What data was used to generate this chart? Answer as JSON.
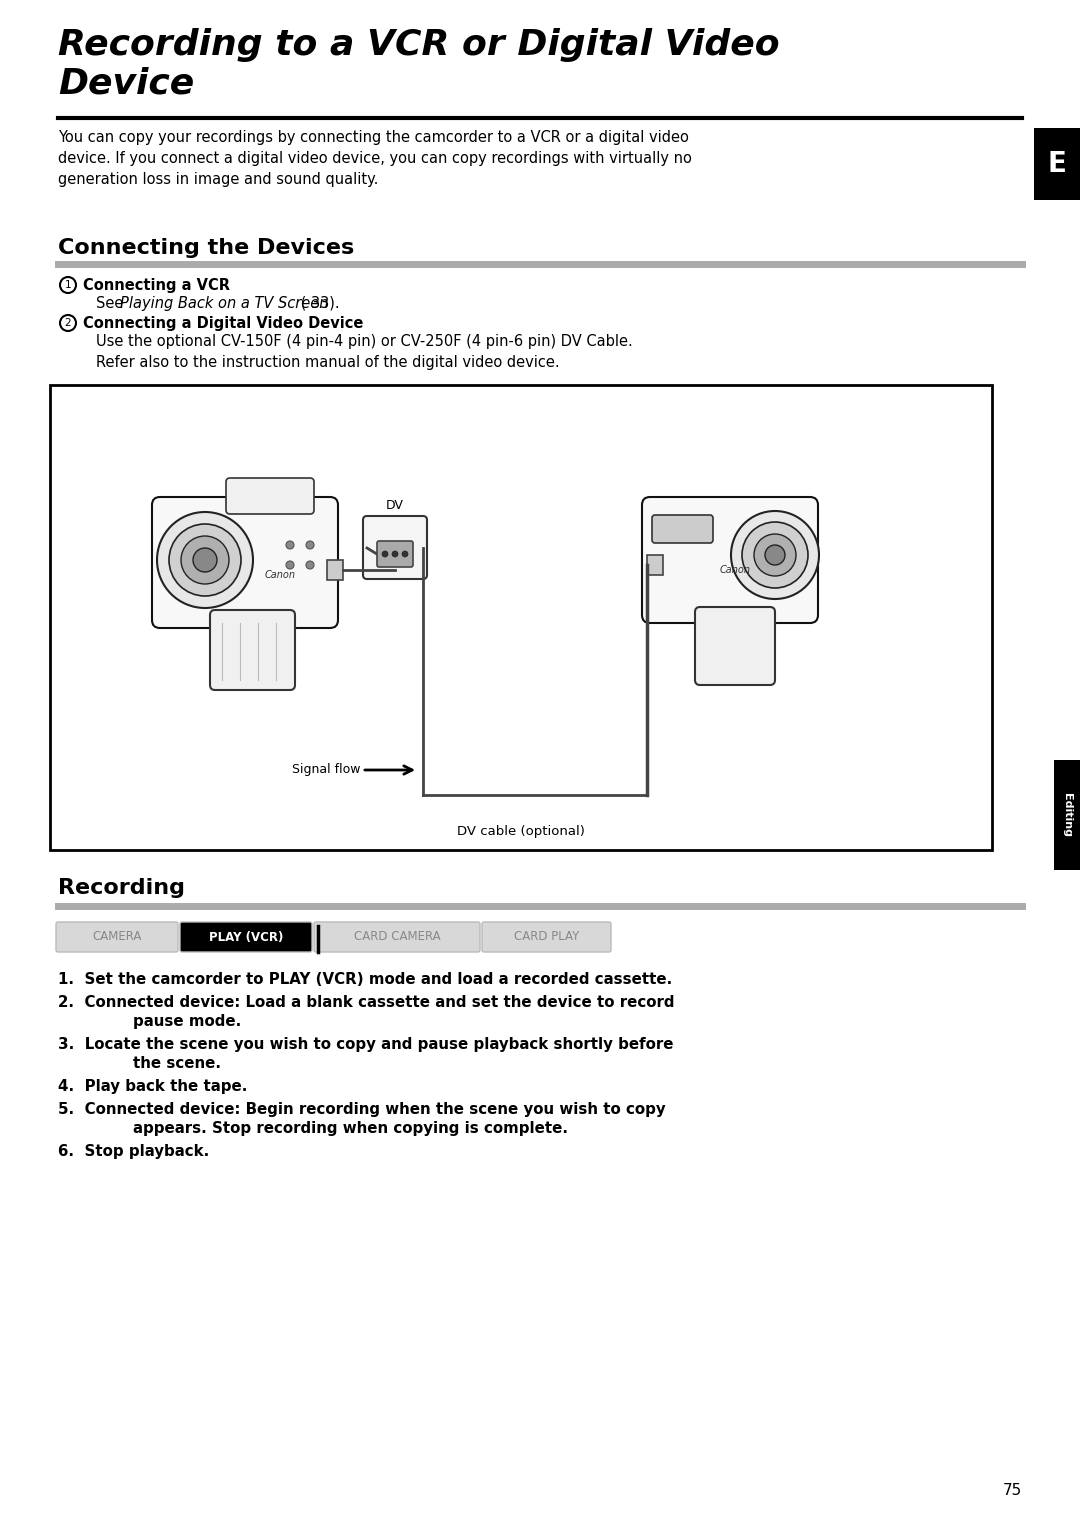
{
  "page_bg": "#ffffff",
  "title_line1": "Recording to a VCR or Digital Video",
  "title_line2": "Device",
  "title_fontsize": 26,
  "separator_color": "#000000",
  "section1_header": "Connecting the Devices",
  "section1_header_fontsize": 16,
  "body_fontsize": 10.5,
  "intro_text": "You can copy your recordings by connecting the camcorder to a VCR or a digital video\ndevice. If you connect a digital video device, you can copy recordings with virtually no\ngeneration loss in image and sound quality.",
  "bullet1_header": "Connecting a VCR",
  "bullet1_body_pre": "See ",
  "bullet1_body_italic": "Playing Back on a TV Screen",
  "bullet1_body_post": " ( 33).",
  "bullet2_header": "Connecting a Digital Video Device",
  "bullet2_body": "Use the optional CV-150F (4 pin-4 pin) or CV-250F (4 pin-6 pin) DV Cable.\nRefer also to the instruction manual of the digital video device.",
  "signal_flow_label": "Signal flow",
  "dv_cable_label": "DV cable (optional)",
  "dv_label": "DV",
  "section2_header": "Recording",
  "section2_header_fontsize": 16,
  "mode_buttons": [
    "CAMERA",
    "PLAY (VCR)",
    "CARD CAMERA",
    "CARD PLAY"
  ],
  "mode_active": 1,
  "mode_button_bg_active": "#000000",
  "mode_button_bg_inactive": "#d8d8d8",
  "mode_button_text_active": "#ffffff",
  "mode_button_text_inactive": "#888888",
  "steps": [
    "Set the camcorder to PLAY (VCR) mode and load a recorded cassette.",
    "Connected device: Load a blank cassette and set the device to record\npause mode.",
    "Locate the scene you wish to copy and pause playback shortly before\nthe scene.",
    "Play back the tape.",
    "Connected device: Begin recording when the scene you wish to copy\nappears. Stop recording when copying is complete.",
    "Stop playback."
  ],
  "page_number": "75",
  "tab_E_text": "E",
  "tab_editing_text": "Editing",
  "tab_bg": "#000000",
  "tab_text_color": "#ffffff",
  "box_border": "#000000",
  "box_fill": "#ffffff",
  "section_underline_color": "#aaaaaa",
  "title_underline_color": "#000000"
}
